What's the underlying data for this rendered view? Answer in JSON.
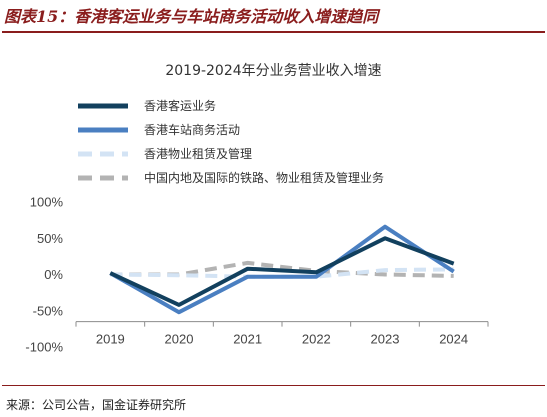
{
  "header": {
    "title": "图表15：香港客运业务与车站商务活动收入增速趋同"
  },
  "footer": {
    "source": "来源：公司公告，国金证券研究所"
  },
  "colors": {
    "brand": "#8a1d1d"
  },
  "chart_data": {
    "type": "line",
    "title": "2019-2024年分业务营业收入增速",
    "x": [
      "2019",
      "2020",
      "2021",
      "2022",
      "2023",
      "2024"
    ],
    "xlabel": "",
    "ylabel": "",
    "ylim": [
      -100,
      100
    ],
    "yticks": [
      100,
      50,
      0,
      -50,
      -100
    ],
    "ytick_labels": [
      "100%",
      "50%",
      "0%",
      "-50%",
      "-100%"
    ],
    "grid": false,
    "legend_position": "top-left",
    "series": [
      {
        "name": "香港客运业务",
        "values": [
          2,
          -42,
          8,
          3,
          50,
          15
        ],
        "color": "#12405e",
        "dash": "solid"
      },
      {
        "name": "香港车站商务活动",
        "values": [
          2,
          -52,
          -3,
          -3,
          66,
          4
        ],
        "color": "#4a7fc1",
        "dash": "solid"
      },
      {
        "name": "香港物业租赁及管理",
        "values": [
          0,
          -1,
          -3,
          -3,
          6,
          7
        ],
        "color": "#d3e3f4",
        "dash": "dashed"
      },
      {
        "name": "中国内地及国际的铁路、物业租赁及管理业务",
        "values": [
          0,
          0,
          16,
          5,
          0,
          -2
        ],
        "color": "#b3b3b3",
        "dash": "dashed"
      }
    ]
  }
}
